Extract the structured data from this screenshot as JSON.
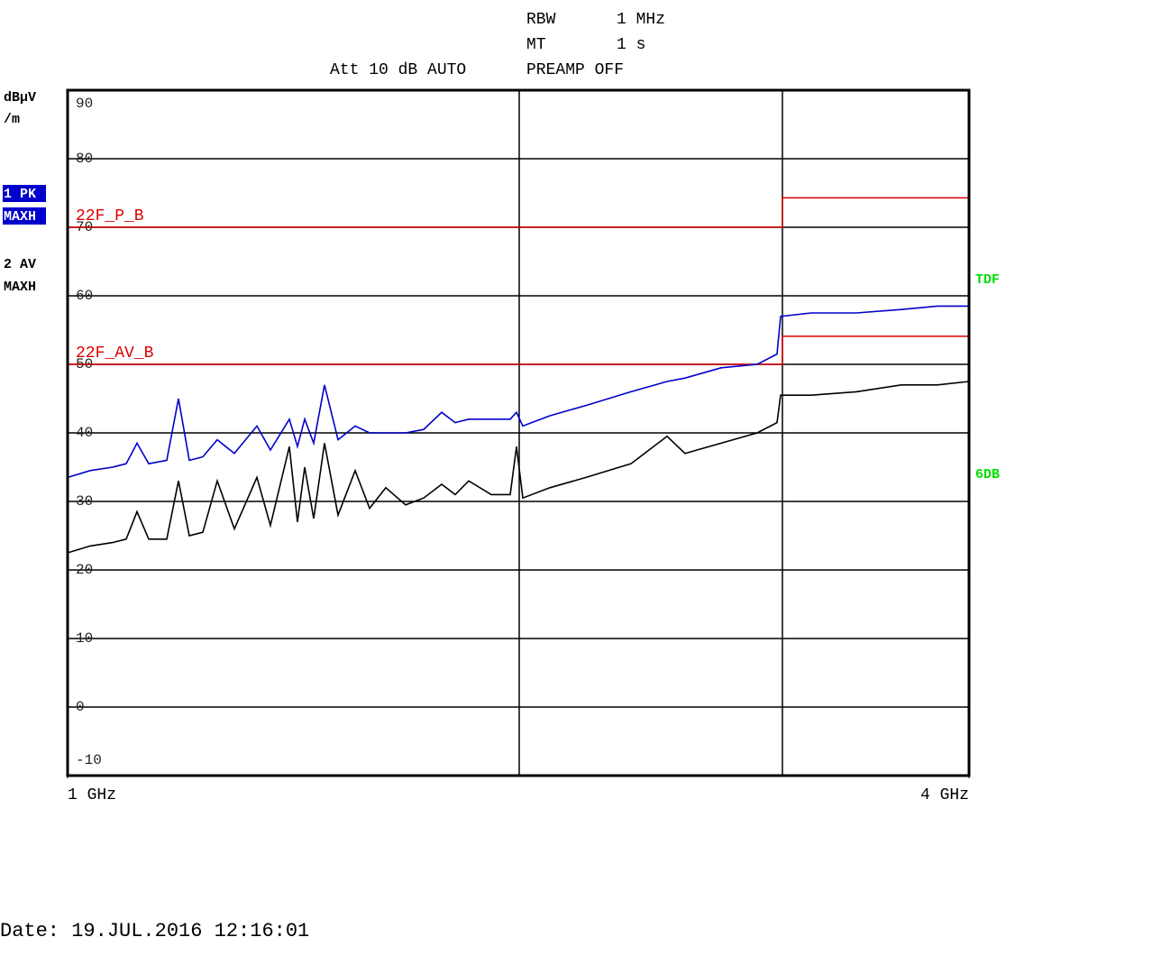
{
  "chart_data": {
    "type": "line",
    "header": {
      "rbw_label": "RBW",
      "rbw": "1 MHz",
      "mt_label": "MT",
      "mt": "1 s",
      "att": "Att 10 dB AUTO",
      "preamp": "PREAMP OFF"
    },
    "y_unit": [
      "dBµV",
      "/m"
    ],
    "side_labels": [
      {
        "text": "TDF",
        "color": "#00dd00"
      },
      {
        "text": "6DB",
        "color": "#00dd00"
      }
    ],
    "date": "Date: 19.JUL.2016  12:16:01",
    "xlim": [
      1,
      4
    ],
    "xticks": [
      {
        "value": 1,
        "label": "1 GHz"
      },
      {
        "value": 4,
        "label": "4 GHz"
      }
    ],
    "ylim": [
      -10,
      90
    ],
    "yticks": [
      90,
      80,
      70,
      60,
      50,
      40,
      30,
      20,
      10,
      0,
      -10
    ],
    "grid": true,
    "vlines": [
      2.503,
      3.379
    ],
    "x": [
      1.0,
      1.075,
      1.15,
      1.195,
      1.231,
      1.27,
      1.33,
      1.369,
      1.405,
      1.45,
      1.498,
      1.555,
      1.63,
      1.675,
      1.738,
      1.765,
      1.789,
      1.819,
      1.855,
      1.9,
      1.957,
      2.005,
      2.059,
      2.125,
      2.185,
      2.245,
      2.29,
      2.335,
      2.41,
      2.473,
      2.494,
      2.515,
      2.605,
      2.725,
      2.875,
      2.995,
      3.055,
      3.175,
      3.295,
      3.361,
      3.373,
      3.475,
      3.625,
      3.775,
      3.895,
      4.0
    ],
    "series": [
      {
        "name": "1 PK",
        "detector": "MAXH",
        "color": "#0000cc",
        "highlight": true,
        "values": [
          33.5,
          34.5,
          35,
          35.5,
          38.5,
          35.5,
          36,
          45,
          36,
          36.5,
          39,
          37,
          41,
          37.5,
          42,
          38,
          42,
          38.5,
          47,
          39,
          41,
          40,
          40,
          40,
          40.5,
          43,
          41.5,
          42,
          42,
          42,
          43,
          41,
          42.5,
          44,
          46,
          47.5,
          48,
          49.5,
          50,
          51.5,
          57,
          57.5,
          57.5,
          58,
          58.5,
          58.5
        ]
      },
      {
        "name": "2 AV",
        "detector": "MAXH",
        "color": "#000000",
        "highlight": false,
        "values": [
          22.5,
          23.5,
          24,
          24.5,
          28.5,
          24.5,
          24.5,
          33,
          25,
          25.5,
          33,
          26,
          33.5,
          26.5,
          38,
          27,
          35,
          27.5,
          38.5,
          28,
          34.5,
          29,
          32,
          29.5,
          30.5,
          32.5,
          31,
          33,
          31,
          31,
          38,
          30.5,
          32,
          33.5,
          35.5,
          39.5,
          37,
          38.5,
          40,
          41.5,
          45.5,
          45.5,
          46,
          47,
          47,
          47.5
        ]
      }
    ],
    "limits": [
      {
        "name": "22F_P_B",
        "color": "#dd0000",
        "x": [
          1,
          3.379,
          3.379,
          4
        ],
        "values": [
          70,
          70,
          74.3,
          74.3
        ]
      },
      {
        "name": "22F_AV_B",
        "color": "#dd0000",
        "x": [
          1,
          3.379,
          3.379,
          4
        ],
        "values": [
          50,
          50,
          54.1,
          54.1
        ]
      }
    ]
  }
}
